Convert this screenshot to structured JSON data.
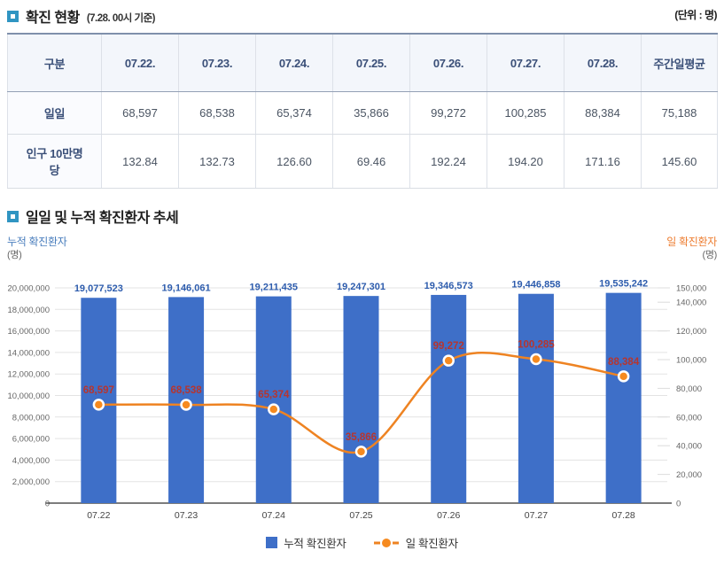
{
  "section1": {
    "title": "확진 현황",
    "subtitle": "(7.28. 00시 기준)",
    "unit_note": "(단위 : 명)"
  },
  "section2": {
    "title": "일일 및 누적 확진환자 추세"
  },
  "table": {
    "columns": [
      "구분",
      "07.22.",
      "07.23.",
      "07.24.",
      "07.25.",
      "07.26.",
      "07.27.",
      "07.28.",
      "주간일평균"
    ],
    "rows": [
      {
        "label": "일일",
        "values": [
          "68,597",
          "68,538",
          "65,374",
          "35,866",
          "99,272",
          "100,285",
          "88,384",
          "75,188"
        ]
      },
      {
        "label": "인구 10만명당",
        "values": [
          "132.84",
          "132.73",
          "126.60",
          "69.46",
          "192.24",
          "194.20",
          "171.16",
          "145.60"
        ]
      }
    ]
  },
  "chart_data": {
    "type": "bar",
    "subtype": "bar+line combo, dual axis",
    "categories": [
      "07.22",
      "07.23",
      "07.24",
      "07.25",
      "07.26",
      "07.27",
      "07.28"
    ],
    "series": [
      {
        "name": "누적 확진환자",
        "type": "bar",
        "axis": "left",
        "values": [
          19077523,
          19146061,
          19211435,
          19247301,
          19346573,
          19446858,
          19535242
        ],
        "color": "#3e6fc8",
        "label_color": "#2d5cad"
      },
      {
        "name": "일 확진환자",
        "type": "line",
        "axis": "right",
        "values": [
          68597,
          68538,
          65374,
          35866,
          99272,
          100285,
          88384
        ],
        "color": "#ee8322",
        "point_color": "#f68a1f",
        "label_color": "#b6352f"
      }
    ],
    "left_axis": {
      "title": "누적 확진환자",
      "unit": "(명)",
      "min": 0,
      "max": 20000000,
      "tick_step": 2000000
    },
    "right_axis": {
      "title": "일 확진환자",
      "unit": "(명)",
      "min": 0,
      "max": 150000,
      "ticks": [
        0,
        20000,
        40000,
        60000,
        80000,
        100000,
        120000,
        140000,
        150000
      ]
    },
    "legend": [
      "누적 확진환자",
      "일 확진환자"
    ],
    "grid": "horizontal gridlines on, legend bottom-center"
  },
  "colors": {
    "bar_blue": "#3e6fc8",
    "line_orange": "#ee8322",
    "point_orange": "#f68a1f",
    "point_label_red": "#b6352f",
    "bar_label_blue": "#2d5cad",
    "axis_title_blue": "#4a7ebd",
    "axis_title_orange": "#ed7d31",
    "section_icon_blue": "#3095c2",
    "table_header_bg": "#f3f6fb",
    "table_header_text": "#3a4f78",
    "table_top_border": "#7f90ab",
    "gridline": "#e3e3e3",
    "tick_text": "#666666"
  }
}
